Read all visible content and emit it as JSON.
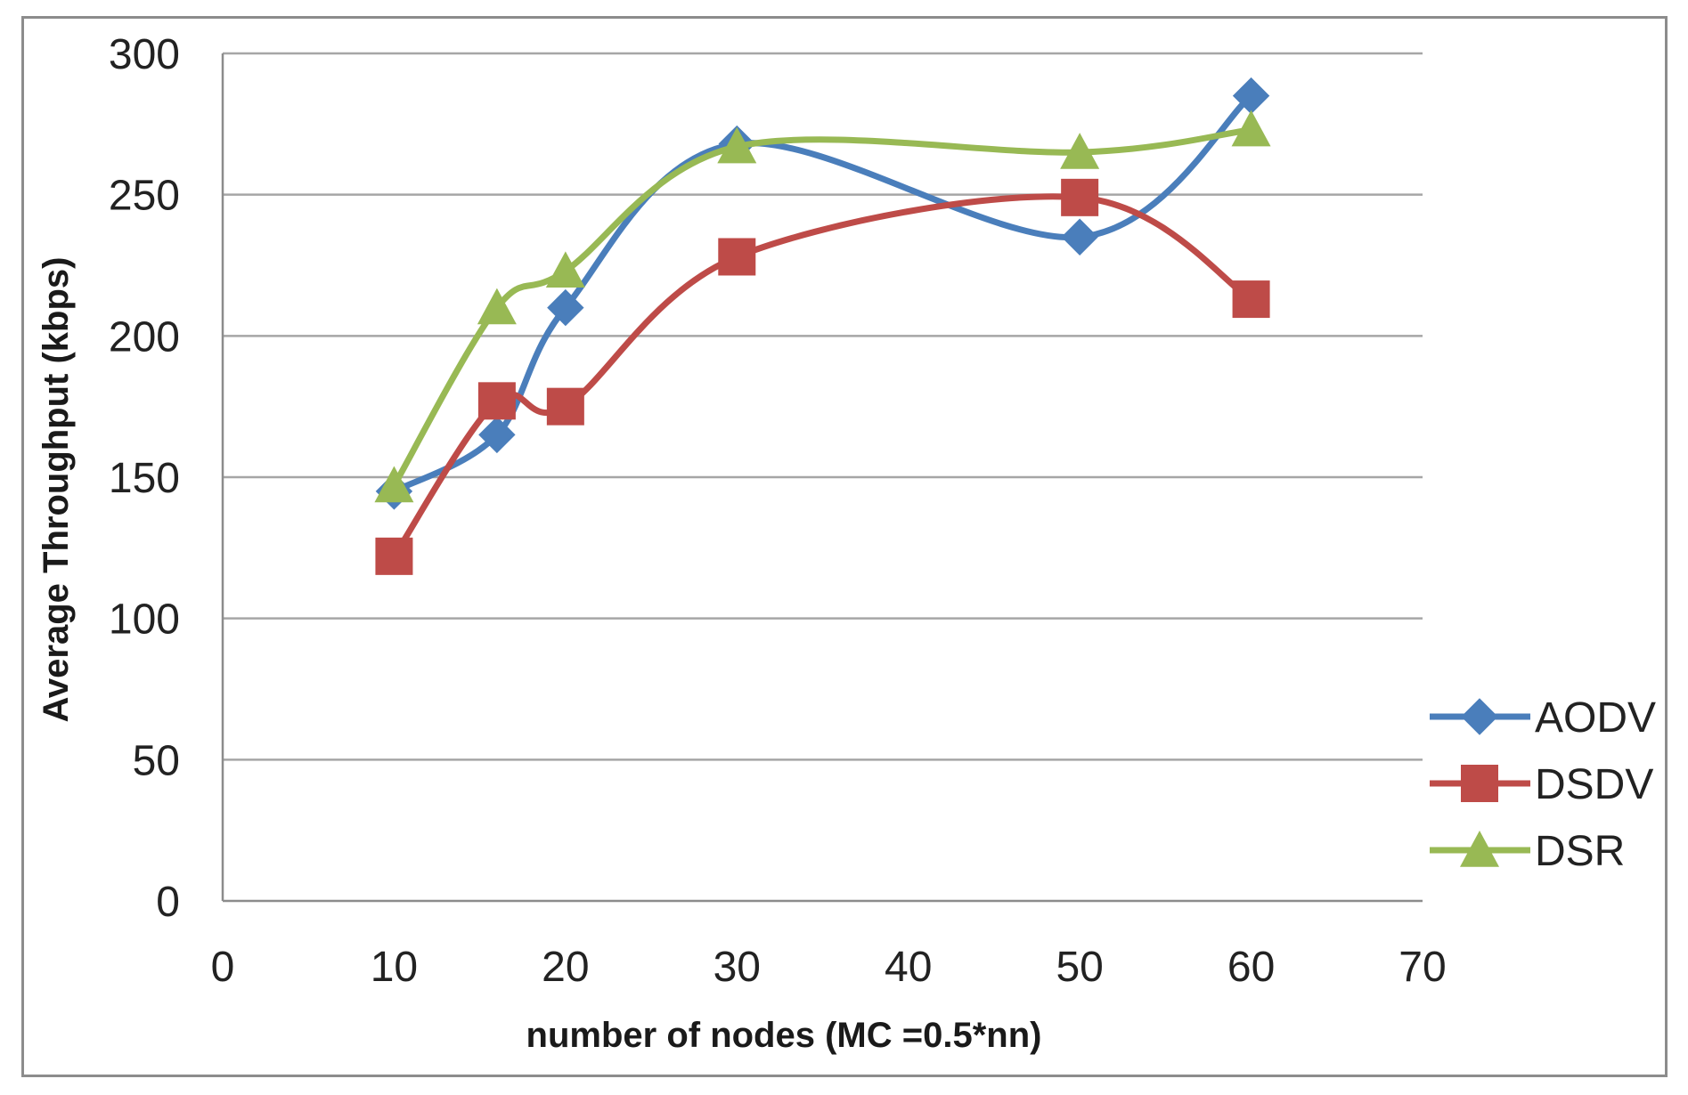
{
  "chart_data": {
    "type": "line",
    "title": "",
    "xlabel": "number of nodes  (MC =0.5*nn)",
    "ylabel": "Average Throughput (kbps)",
    "xlim": [
      0,
      70
    ],
    "ylim": [
      0,
      300
    ],
    "xticks": [
      0,
      10,
      20,
      30,
      40,
      50,
      60,
      70
    ],
    "yticks": [
      0,
      50,
      100,
      150,
      200,
      250,
      300
    ],
    "grid": "horizontal",
    "legend_position": "right",
    "smooth": true,
    "x": [
      10,
      16,
      20,
      30,
      50,
      60
    ],
    "series": [
      {
        "name": "AODV",
        "marker": "diamond",
        "color": "#4a7ebb",
        "values": [
          145,
          165,
          210,
          268,
          235,
          285
        ]
      },
      {
        "name": "DSDV",
        "marker": "square",
        "color": "#be4b48",
        "values": [
          122,
          177,
          175,
          228,
          249,
          213
        ]
      },
      {
        "name": "DSR",
        "marker": "triangle",
        "color": "#98b954",
        "values": [
          147,
          210,
          223,
          267,
          265,
          273
        ]
      }
    ]
  }
}
